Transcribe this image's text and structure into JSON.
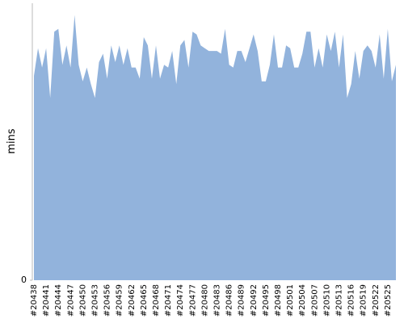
{
  "chart_data": {
    "type": "area",
    "y_label": "mins",
    "color": "#92b3dc",
    "categories": [
      "#20438",
      null,
      null,
      "#20441",
      null,
      null,
      "#20444",
      null,
      null,
      "#20447",
      null,
      null,
      "#20450",
      null,
      null,
      "#20453",
      null,
      null,
      "#20456",
      null,
      null,
      "#20459",
      null,
      null,
      "#20462",
      null,
      null,
      "#20465",
      null,
      null,
      "#20468",
      null,
      null,
      "#20471",
      null,
      null,
      "#20474",
      null,
      null,
      "#20477",
      null,
      null,
      "#20480",
      null,
      null,
      "#20483",
      null,
      null,
      "#20486",
      null,
      null,
      "#20489",
      null,
      null,
      "#20492",
      null,
      null,
      "#20495",
      null,
      null,
      "#20498",
      null,
      null,
      "#20501",
      null,
      null,
      "#20504",
      null,
      null,
      "#20507",
      null,
      null,
      "#20510",
      null,
      null,
      "#20513",
      null,
      null,
      "#20516",
      null,
      null,
      "#20519",
      null,
      null,
      "#20522",
      null,
      null,
      "#20525",
      null,
      null
    ],
    "values": [
      74,
      84,
      77,
      84,
      66,
      90,
      91,
      78,
      85,
      77,
      96,
      78,
      72,
      77,
      71,
      66,
      79,
      82,
      73,
      85,
      79,
      85,
      78,
      84,
      77,
      77,
      73,
      88,
      85,
      73,
      85,
      73,
      78,
      77,
      83,
      71,
      85,
      87,
      77,
      90,
      89,
      85,
      84,
      83,
      83,
      83,
      82,
      91,
      78,
      77,
      83,
      83,
      79,
      84,
      89,
      83,
      72,
      72,
      78,
      89,
      77,
      77,
      85,
      84,
      77,
      77,
      82,
      90,
      90,
      77,
      84,
      77,
      89,
      83,
      90,
      77,
      89,
      66,
      71,
      83,
      73,
      83,
      85,
      83,
      77,
      89,
      73,
      91,
      72,
      78
    ],
    "ylim": [
      0,
      100
    ],
    "yticks": [
      0
    ]
  }
}
